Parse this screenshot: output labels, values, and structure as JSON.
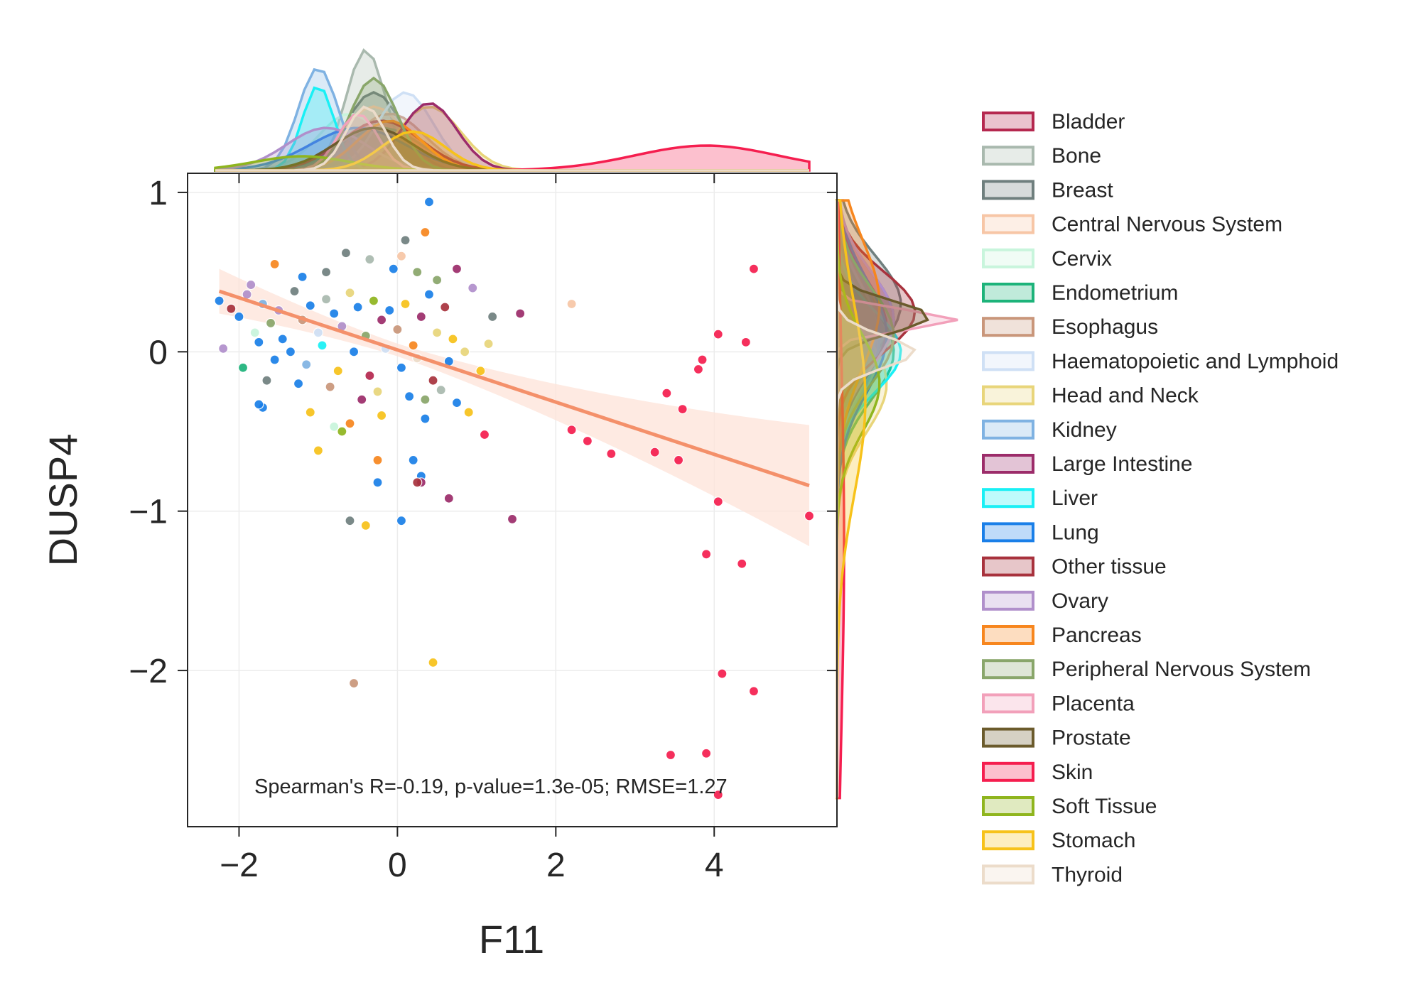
{
  "chart_data": {
    "type": "scatter",
    "xlabel": "F11",
    "ylabel": "DUSP4",
    "xlim": [
      -2.65,
      5.55
    ],
    "ylim": [
      -2.98,
      1.12
    ],
    "x_ticks": [
      -2,
      0,
      2,
      4
    ],
    "y_ticks": [
      -2,
      -1,
      0,
      1
    ],
    "x_tick_labels": [
      "−2",
      "0",
      "2",
      "4"
    ],
    "y_tick_labels": [
      "−2",
      "−1",
      "0",
      "1"
    ],
    "grid": true,
    "annotation": "Spearman's R=-0.19, p-value=1.3e-05; RMSE=1.27",
    "regression": {
      "color": "#f4906a",
      "x": [
        -2.25,
        5.2
      ],
      "y": [
        0.38,
        -0.84
      ],
      "ci_upper": [
        0.52,
        -0.46
      ],
      "ci_lower": [
        0.24,
        -1.2
      ]
    },
    "legend_position": "right",
    "series": [
      {
        "name": "Bladder",
        "color": "#b5284f"
      },
      {
        "name": "Bone",
        "color": "#a9b9ae"
      },
      {
        "name": "Breast",
        "color": "#6f7f7e"
      },
      {
        "name": "Central Nervous System",
        "color": "#f7c6a6"
      },
      {
        "name": "Cervix",
        "color": "#c8f5dc"
      },
      {
        "name": "Endometrium",
        "color": "#1db37a"
      },
      {
        "name": "Esophagus",
        "color": "#c9967a"
      },
      {
        "name": "Haematopoietic and Lymphoid",
        "color": "#cfe0f5"
      },
      {
        "name": "Head and Neck",
        "color": "#e8d57a"
      },
      {
        "name": "Kidney",
        "color": "#7fb2e2"
      },
      {
        "name": "Large Intestine",
        "color": "#9c2c6a"
      },
      {
        "name": "Liver",
        "color": "#19f0f5"
      },
      {
        "name": "Lung",
        "color": "#1a7fe8"
      },
      {
        "name": "Other tissue",
        "color": "#a8323d"
      },
      {
        "name": "Ovary",
        "color": "#b08fcb"
      },
      {
        "name": "Pancreas",
        "color": "#f7861e"
      },
      {
        "name": "Peripheral Nervous System",
        "color": "#89a66a"
      },
      {
        "name": "Placenta",
        "color": "#f2a0ba"
      },
      {
        "name": "Prostate",
        "color": "#6b5b2c"
      },
      {
        "name": "Skin",
        "color": "#f51e4f"
      },
      {
        "name": "Soft Tissue",
        "color": "#8fb51e"
      },
      {
        "name": "Stomach",
        "color": "#f7c21a"
      },
      {
        "name": "Thyroid",
        "color": "#ecdcca"
      }
    ],
    "points": [
      {
        "x": -2.25,
        "y": 0.32,
        "s": 12
      },
      {
        "x": -2.1,
        "y": 0.27,
        "s": 13
      },
      {
        "x": -2.0,
        "y": 0.22,
        "s": 12
      },
      {
        "x": -1.9,
        "y": 0.36,
        "s": 14
      },
      {
        "x": -1.8,
        "y": 0.12,
        "s": 4
      },
      {
        "x": -1.7,
        "y": 0.3,
        "s": 9
      },
      {
        "x": -1.6,
        "y": 0.18,
        "s": 16
      },
      {
        "x": -1.5,
        "y": 0.26,
        "s": 14
      },
      {
        "x": -1.45,
        "y": 0.08,
        "s": 12
      },
      {
        "x": -1.3,
        "y": 0.38,
        "s": 2
      },
      {
        "x": -1.2,
        "y": 0.2,
        "s": 6
      },
      {
        "x": -1.1,
        "y": 0.29,
        "s": 12
      },
      {
        "x": -1.0,
        "y": 0.12,
        "s": 7
      },
      {
        "x": -0.9,
        "y": 0.33,
        "s": 1
      },
      {
        "x": -0.8,
        "y": 0.24,
        "s": 12
      },
      {
        "x": -0.7,
        "y": 0.16,
        "s": 14
      },
      {
        "x": -0.6,
        "y": 0.37,
        "s": 8
      },
      {
        "x": -0.5,
        "y": 0.28,
        "s": 12
      },
      {
        "x": -0.4,
        "y": 0.1,
        "s": 16
      },
      {
        "x": -0.3,
        "y": 0.32,
        "s": 20
      },
      {
        "x": -0.2,
        "y": 0.2,
        "s": 10
      },
      {
        "x": -0.1,
        "y": 0.26,
        "s": 12
      },
      {
        "x": 0.0,
        "y": 0.14,
        "s": 6
      },
      {
        "x": 0.1,
        "y": 0.3,
        "s": 21
      },
      {
        "x": 0.2,
        "y": 0.04,
        "s": 15
      },
      {
        "x": 0.3,
        "y": 0.22,
        "s": 10
      },
      {
        "x": 0.4,
        "y": 0.36,
        "s": 12
      },
      {
        "x": 0.5,
        "y": 0.12,
        "s": 8
      },
      {
        "x": 0.6,
        "y": 0.28,
        "s": 13
      },
      {
        "x": 0.7,
        "y": 0.08,
        "s": 21
      },
      {
        "x": -2.2,
        "y": 0.02,
        "s": 14
      },
      {
        "x": -1.95,
        "y": -0.1,
        "s": 5
      },
      {
        "x": -1.75,
        "y": 0.06,
        "s": 12
      },
      {
        "x": -1.55,
        "y": -0.05,
        "s": 12
      },
      {
        "x": -1.35,
        "y": 0.0,
        "s": 12
      },
      {
        "x": -1.15,
        "y": -0.08,
        "s": 9
      },
      {
        "x": -0.95,
        "y": 0.04,
        "s": 11
      },
      {
        "x": -0.75,
        "y": -0.12,
        "s": 21
      },
      {
        "x": -0.55,
        "y": 0.0,
        "s": 12
      },
      {
        "x": -0.35,
        "y": -0.15,
        "s": 0
      },
      {
        "x": -0.15,
        "y": 0.02,
        "s": 7
      },
      {
        "x": 0.05,
        "y": -0.1,
        "s": 12
      },
      {
        "x": 0.25,
        "y": -0.04,
        "s": 22
      },
      {
        "x": 0.45,
        "y": -0.18,
        "s": 13
      },
      {
        "x": 0.65,
        "y": -0.06,
        "s": 12
      },
      {
        "x": 0.85,
        "y": 0.0,
        "s": 8
      },
      {
        "x": 1.05,
        "y": -0.12,
        "s": 21
      },
      {
        "x": -1.65,
        "y": -0.18,
        "s": 2
      },
      {
        "x": -1.25,
        "y": -0.2,
        "s": 12
      },
      {
        "x": -0.85,
        "y": -0.22,
        "s": 6
      },
      {
        "x": -0.45,
        "y": -0.3,
        "s": 10
      },
      {
        "x": -0.25,
        "y": -0.25,
        "s": 8
      },
      {
        "x": 0.15,
        "y": -0.28,
        "s": 12
      },
      {
        "x": 0.35,
        "y": -0.3,
        "s": 16
      },
      {
        "x": 0.55,
        "y": -0.24,
        "s": 1
      },
      {
        "x": 0.75,
        "y": -0.32,
        "s": 12
      },
      {
        "x": 0.9,
        "y": -0.38,
        "s": 21
      },
      {
        "x": -1.85,
        "y": 0.42,
        "s": 14
      },
      {
        "x": -1.55,
        "y": 0.55,
        "s": 15
      },
      {
        "x": -1.2,
        "y": 0.47,
        "s": 12
      },
      {
        "x": -0.9,
        "y": 0.5,
        "s": 2
      },
      {
        "x": -0.65,
        "y": 0.62,
        "s": 2
      },
      {
        "x": -0.35,
        "y": 0.58,
        "s": 1
      },
      {
        "x": -0.05,
        "y": 0.52,
        "s": 12
      },
      {
        "x": 0.25,
        "y": 0.5,
        "s": 16
      },
      {
        "x": 0.5,
        "y": 0.45,
        "s": 16
      },
      {
        "x": 0.75,
        "y": 0.52,
        "s": 10
      },
      {
        "x": 0.95,
        "y": 0.4,
        "s": 14
      },
      {
        "x": -1.7,
        "y": -0.35,
        "s": 12
      },
      {
        "x": -1.1,
        "y": -0.38,
        "s": 21
      },
      {
        "x": -0.6,
        "y": -0.45,
        "s": 15
      },
      {
        "x": -0.2,
        "y": -0.4,
        "s": 21
      },
      {
        "x": 0.35,
        "y": -0.42,
        "s": 12
      },
      {
        "x": -1.0,
        "y": -0.62,
        "s": 21
      },
      {
        "x": -0.8,
        "y": -0.47,
        "s": 4
      },
      {
        "x": -0.7,
        "y": -0.5,
        "s": 20
      },
      {
        "x": -1.75,
        "y": -0.33,
        "s": 12
      },
      {
        "x": 0.2,
        "y": -0.68,
        "s": 12
      },
      {
        "x": 0.3,
        "y": -0.78,
        "s": 12
      },
      {
        "x": -0.25,
        "y": -0.68,
        "s": 15
      },
      {
        "x": 0.3,
        "y": -0.82,
        "s": 10
      },
      {
        "x": -0.25,
        "y": -0.82,
        "s": 12
      },
      {
        "x": 0.25,
        "y": -0.82,
        "s": 13
      },
      {
        "x": 0.65,
        "y": -0.92,
        "s": 10
      },
      {
        "x": -0.6,
        "y": -1.06,
        "s": 2
      },
      {
        "x": -0.4,
        "y": -1.09,
        "s": 21
      },
      {
        "x": 0.05,
        "y": -1.06,
        "s": 12
      },
      {
        "x": 1.45,
        "y": -1.05,
        "s": 10
      },
      {
        "x": -0.55,
        "y": -2.08,
        "s": 6
      },
      {
        "x": 0.45,
        "y": -1.95,
        "s": 21
      },
      {
        "x": 0.4,
        "y": 0.94,
        "s": 12
      },
      {
        "x": 0.1,
        "y": 0.7,
        "s": 2
      },
      {
        "x": 0.05,
        "y": 0.6,
        "s": 3
      },
      {
        "x": 0.35,
        "y": 0.75,
        "s": 15
      },
      {
        "x": 1.55,
        "y": 0.24,
        "s": 10
      },
      {
        "x": 1.2,
        "y": 0.22,
        "s": 2
      },
      {
        "x": 1.15,
        "y": 0.05,
        "s": 8
      },
      {
        "x": 1.1,
        "y": -0.52,
        "s": 19
      },
      {
        "x": 2.2,
        "y": 0.3,
        "s": 3
      },
      {
        "x": 2.2,
        "y": -0.49,
        "s": 19
      },
      {
        "x": 2.4,
        "y": -0.56,
        "s": 19
      },
      {
        "x": 2.7,
        "y": -0.64,
        "s": 19
      },
      {
        "x": 3.25,
        "y": -0.63,
        "s": 19
      },
      {
        "x": 3.4,
        "y": -0.26,
        "s": 19
      },
      {
        "x": 3.55,
        "y": -0.68,
        "s": 19
      },
      {
        "x": 3.6,
        "y": -0.36,
        "s": 19
      },
      {
        "x": 3.8,
        "y": -0.11,
        "s": 19
      },
      {
        "x": 3.85,
        "y": -0.05,
        "s": 19
      },
      {
        "x": 4.05,
        "y": 0.11,
        "s": 19
      },
      {
        "x": 4.4,
        "y": 0.06,
        "s": 19
      },
      {
        "x": 4.5,
        "y": 0.52,
        "s": 19
      },
      {
        "x": 4.05,
        "y": -0.94,
        "s": 19
      },
      {
        "x": 5.2,
        "y": -1.03,
        "s": 19
      },
      {
        "x": 3.9,
        "y": -1.27,
        "s": 19
      },
      {
        "x": 4.35,
        "y": -1.33,
        "s": 19
      },
      {
        "x": 4.1,
        "y": -2.02,
        "s": 19
      },
      {
        "x": 4.5,
        "y": -2.13,
        "s": 19
      },
      {
        "x": 3.45,
        "y": -2.53,
        "s": 19
      },
      {
        "x": 3.9,
        "y": -2.52,
        "s": 19
      },
      {
        "x": 4.05,
        "y": -2.78,
        "s": 19
      }
    ]
  }
}
